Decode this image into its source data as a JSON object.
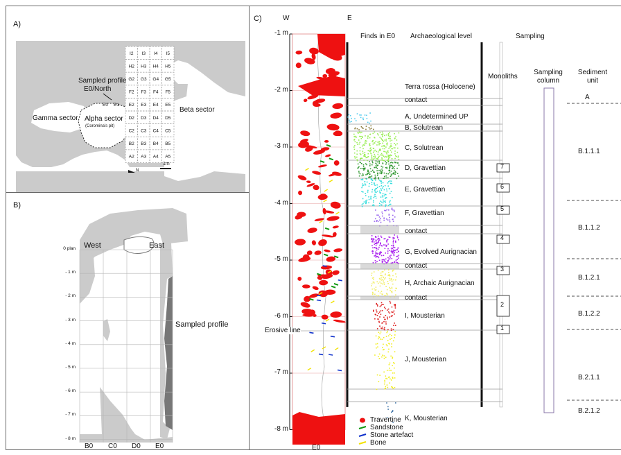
{
  "panel_a": {
    "label": "A)",
    "sampled_profile": "Sampled profile",
    "e0_north": "E0/North",
    "beta": "Beta sector",
    "gamma": "Gamma sector",
    "alpha": "Alpha sector",
    "alpha_sub": "(Coromina's pit)",
    "scale": "1m",
    "north": "N",
    "grid_rows": [
      [
        "I2",
        "I3",
        "I4",
        "I5"
      ],
      [
        "H2",
        "H3",
        "H4",
        "H5"
      ],
      [
        "G2",
        "G3",
        "G4",
        "G5"
      ],
      [
        "F2",
        "F3",
        "F4",
        "F5"
      ],
      [
        "E2",
        "E3",
        "E4",
        "E5"
      ],
      [
        "D2",
        "D3",
        "D4",
        "D5"
      ],
      [
        "C2",
        "C3",
        "C4",
        "C5"
      ],
      [
        "B2",
        "B3",
        "B4",
        "B5"
      ],
      [
        "A2",
        "A3",
        "A4",
        "A5"
      ]
    ],
    "extra_cells": [
      "E0",
      "E1"
    ]
  },
  "panel_b": {
    "label": "B)",
    "west": "West",
    "east": "East",
    "sampled_profile": "Sampled profile",
    "depths": [
      "0 plan",
      "- 1 m",
      "- 2 m",
      "- 3 m",
      "- 4 m",
      "- 5 m",
      "- 6 m",
      "- 7 m",
      "- 8 m"
    ],
    "columns": [
      "B0",
      "C0",
      "D0",
      "E0"
    ]
  },
  "panel_c": {
    "label": "C)",
    "w": "W",
    "e": "E",
    "depths": [
      "-1 m",
      "-2 m",
      "-3 m",
      "-4 m",
      "-5 m",
      "-6 m",
      "-7 m",
      "-8 m"
    ],
    "bottom_label": "E0",
    "erosive_line": "Erosive line",
    "headers": {
      "finds": "Finds in E0",
      "level": "Archaeological level",
      "sampling": "Sampling",
      "monoliths": "Monoliths",
      "sampling_column": "Sampling column",
      "sediment_unit": "Sediment unit"
    },
    "levels": [
      "Terra rossa (Holocene)",
      "contact",
      "A, Undetermined UP",
      "B, Solutrean",
      "C, Solutrean",
      "D, Gravettian",
      "E, Gravettian",
      "F, Gravettian",
      "contact",
      "G, Evolved Aurignacian",
      "contact",
      "H, Archaic Aurignacian",
      "contact",
      "I, Mousterian",
      "J, Mousterian",
      "K, Mousterian"
    ],
    "monoliths": [
      "7",
      "6",
      "5",
      "4",
      "3",
      "2",
      "1"
    ],
    "sediment_units": [
      "A",
      "B.1.1.1",
      "B.1.1.2",
      "B.1.2.1",
      "B.1.2.2",
      "B.2.1.1",
      "B.2.1.2"
    ],
    "legend": [
      {
        "label": "Travertine",
        "color": "#ee1111"
      },
      {
        "label": "Sandstone",
        "color": "#119911"
      },
      {
        "label": "Stone artefact",
        "color": "#1133cc"
      },
      {
        "label": "Bone",
        "color": "#f2e200"
      }
    ],
    "finds_colors": {
      "A": "#55ccee",
      "B": "#8a7a3a",
      "C": "#99ee55",
      "D": "#339933",
      "E": "#33dddd",
      "F": "#9966ee",
      "G": "#aa22ee",
      "H": "#f2ee66",
      "I": "#dd2222",
      "J": "#f2ee22",
      "K": "#4477aa"
    }
  }
}
